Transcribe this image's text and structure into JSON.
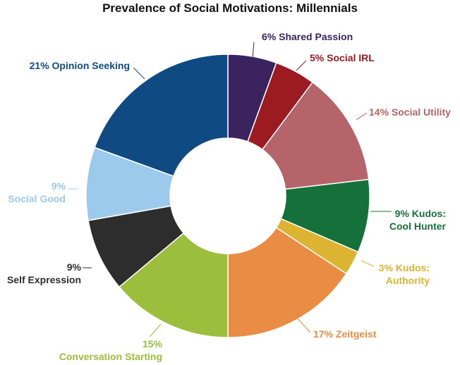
{
  "chart_data": {
    "type": "pie",
    "title": "Prevalence of Social Motivations: Millennials",
    "slices": [
      {
        "name": "Shared Passion",
        "value": 6,
        "color": "#3B2360",
        "label_lines": [
          "6% Shared Passion"
        ]
      },
      {
        "name": "Social IRL",
        "value": 5,
        "color": "#9B1B21",
        "label_lines": [
          "5% Social IRL"
        ]
      },
      {
        "name": "Social Utility",
        "value": 14,
        "color": "#B5646A",
        "label_lines": [
          "14% Social Utility"
        ]
      },
      {
        "name": "Kudos: Cool Hunter",
        "value": 9,
        "color": "#16703A",
        "label_lines": [
          "9% Kudos:",
          "Cool Hunter"
        ]
      },
      {
        "name": "Kudos: Authority",
        "value": 3,
        "color": "#DDB431",
        "label_lines": [
          "3% Kudos:",
          "Authority"
        ]
      },
      {
        "name": "Zeitgeist",
        "value": 17,
        "color": "#E88D43",
        "label_lines": [
          "17% Zeitgeist"
        ]
      },
      {
        "name": "Conversation Starting",
        "value": 15,
        "color": "#9BBE3D",
        "label_lines": [
          "15%",
          "Conversation Starting"
        ]
      },
      {
        "name": "Self Expression",
        "value": 9,
        "color": "#2D2D2D",
        "label_lines": [
          "9%",
          "Self Expression"
        ]
      },
      {
        "name": "Social Good",
        "value": 9,
        "color": "#9CCAEC",
        "label_lines": [
          "9%",
          "Social Good"
        ]
      },
      {
        "name": "Opinion Seeking",
        "value": 21,
        "color": "#0F4A83",
        "label_lines": [
          "21% Opinion Seeking"
        ]
      }
    ]
  }
}
